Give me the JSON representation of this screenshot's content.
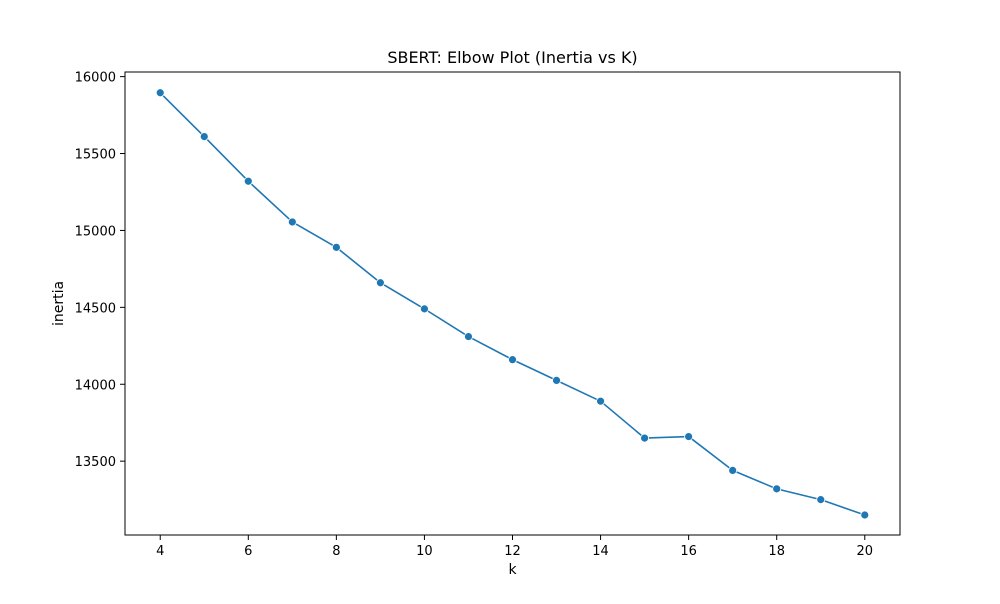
{
  "chart_data": {
    "type": "line",
    "title": "SBERT: Elbow Plot (Inertia vs K)",
    "xlabel": "k",
    "ylabel": "inertia",
    "x": [
      4,
      5,
      6,
      7,
      8,
      9,
      10,
      11,
      12,
      13,
      14,
      15,
      16,
      17,
      18,
      19,
      20
    ],
    "series": [
      {
        "values": [
          15895,
          15610,
          15320,
          15055,
          14890,
          14660,
          14490,
          14310,
          14160,
          14025,
          13890,
          13650,
          13660,
          13440,
          13320,
          13250,
          13150
        ]
      }
    ],
    "xlim": [
      3.2,
      20.8
    ],
    "ylim": [
      13020,
      16030
    ],
    "xticks": [
      4,
      6,
      8,
      10,
      12,
      14,
      16,
      18,
      20
    ],
    "yticks": [
      13500,
      14000,
      14500,
      15000,
      15500,
      16000
    ],
    "grid": false,
    "marker": "circle",
    "colors": {
      "line": "#1f77b4",
      "axes": "#000000"
    }
  }
}
